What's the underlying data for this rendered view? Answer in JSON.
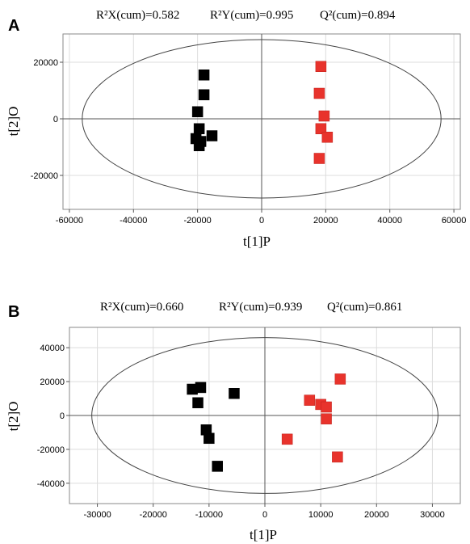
{
  "chart_data": [
    {
      "type": "scatter",
      "panel": "A",
      "stats": {
        "r2x": "R²X(cum)=0.582",
        "r2y": "R²Y(cum)=0.995",
        "q2": "Q²(cum)=0.894"
      },
      "xlabel": "t[1]P",
      "ylabel": "t[2]O",
      "xlim": [
        -62000,
        62000
      ],
      "ylim": [
        -32000,
        30000
      ],
      "xticks": [
        -60000,
        -40000,
        -20000,
        0,
        20000,
        40000,
        60000
      ],
      "yticks": [
        -20000,
        0,
        20000
      ],
      "ellipse": {
        "rx": 56000,
        "ry": 28000
      },
      "grid": true,
      "series": [
        {
          "color": "#000000",
          "points": [
            [
              -18000,
              15500
            ],
            [
              -18000,
              8500
            ],
            [
              -20000,
              2500
            ],
            [
              -19500,
              -3500
            ],
            [
              -20500,
              -7000
            ],
            [
              -19000,
              -8000
            ],
            [
              -19500,
              -9500
            ],
            [
              -15500,
              -6000
            ]
          ]
        },
        {
          "color": "#e8332c",
          "points": [
            [
              18500,
              18500
            ],
            [
              18000,
              9000
            ],
            [
              19500,
              1000
            ],
            [
              18500,
              -3500
            ],
            [
              20500,
              -6500
            ],
            [
              18000,
              -14000
            ]
          ]
        }
      ]
    },
    {
      "type": "scatter",
      "panel": "B",
      "stats": {
        "r2x": "R²X(cum)=0.660",
        "r2y": "R²Y(cum)=0.939",
        "q2": "Q²(cum)=0.861"
      },
      "xlabel": "t[1]P",
      "ylabel": "t[2]O",
      "xlim": [
        -35000,
        35000
      ],
      "ylim": [
        -52000,
        52000
      ],
      "xticks": [
        -30000,
        -20000,
        -10000,
        0,
        10000,
        20000,
        30000
      ],
      "yticks": [
        -40000,
        -20000,
        0,
        20000,
        40000
      ],
      "ellipse": {
        "rx": 31000,
        "ry": 46000
      },
      "grid": true,
      "series": [
        {
          "color": "#000000",
          "points": [
            [
              -13000,
              15500
            ],
            [
              -11500,
              16500
            ],
            [
              -12000,
              7500
            ],
            [
              -5500,
              13000
            ],
            [
              -10500,
              -8500
            ],
            [
              -10000,
              -13500
            ],
            [
              -8500,
              -30000
            ]
          ]
        },
        {
          "color": "#e8332c",
          "points": [
            [
              13500,
              21500
            ],
            [
              8000,
              9000
            ],
            [
              10000,
              6500
            ],
            [
              11000,
              5000
            ],
            [
              11000,
              -2000
            ],
            [
              4000,
              -14000
            ],
            [
              13000,
              -24500
            ]
          ]
        }
      ]
    }
  ]
}
